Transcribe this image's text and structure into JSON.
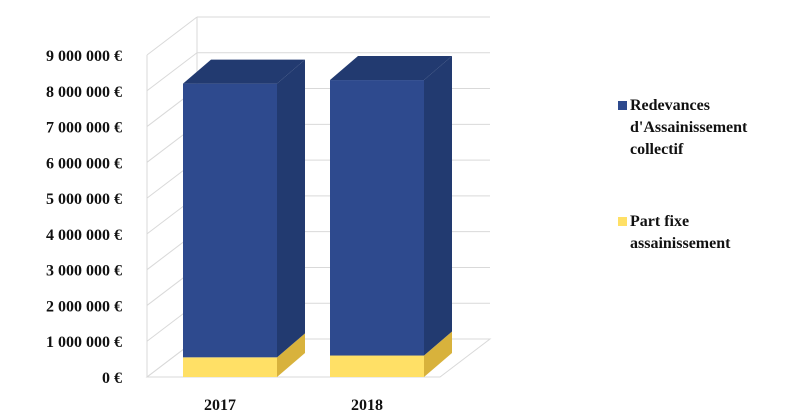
{
  "chart_data": {
    "type": "bar",
    "stacked": true,
    "three_d": true,
    "categories": [
      "2017",
      "2018"
    ],
    "series": [
      {
        "name": "Part fixe assainissement",
        "values": [
          550000,
          600000
        ],
        "color": "#FFE066",
        "color_dark": "#D8B23C",
        "legend_lines": [
          "Part fixe",
          "assainissement"
        ]
      },
      {
        "name": "Redevances d'Assainissement collectif",
        "values": [
          7650000,
          7700000
        ],
        "color": "#2E4A8E",
        "color_dark": "#223A70",
        "legend_lines": [
          "Redevances",
          "d'Assainissement",
          "collectif"
        ]
      }
    ],
    "yticks": [
      "0 €",
      "1 000 000 €",
      "2 000 000 €",
      "3 000 000 €",
      "4 000 000 €",
      "5 000 000 €",
      "6 000 000 €",
      "7 000 000 €",
      "8 000 000 €",
      "9 000 000 €"
    ],
    "ylim": [
      0,
      9000000
    ],
    "grid": true,
    "legend_position": "right"
  }
}
